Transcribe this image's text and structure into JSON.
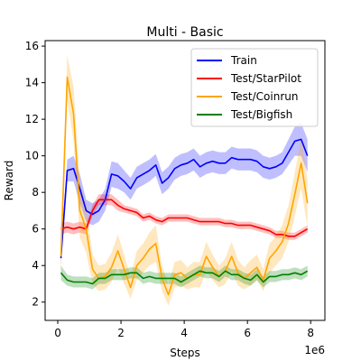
{
  "chart_data": {
    "type": "line",
    "title": "Multi - Basic",
    "xlabel": "Steps",
    "ylabel": "Reward",
    "x_offset_text": "1e6",
    "xlim": [
      -0.4,
      8.45
    ],
    "ylim": [
      1.0,
      16.3
    ],
    "xticks": [
      0,
      2,
      4,
      6,
      8
    ],
    "yticks": [
      2,
      4,
      6,
      8,
      10,
      12,
      14,
      16
    ],
    "legend": "top-right",
    "grid": false,
    "x": [
      0.1,
      0.3,
      0.5,
      0.7,
      0.9,
      1.1,
      1.3,
      1.5,
      1.7,
      1.9,
      2.1,
      2.3,
      2.5,
      2.7,
      2.9,
      3.1,
      3.3,
      3.5,
      3.7,
      3.9,
      4.1,
      4.3,
      4.5,
      4.7,
      4.9,
      5.1,
      5.3,
      5.5,
      5.7,
      5.9,
      6.1,
      6.3,
      6.5,
      6.7,
      6.9,
      7.1,
      7.3,
      7.5,
      7.7,
      7.9
    ],
    "series": [
      {
        "name": "Train",
        "color": "#0000ff",
        "values": [
          4.4,
          9.2,
          9.3,
          8.2,
          7.0,
          6.8,
          7.0,
          7.6,
          9.0,
          8.9,
          8.6,
          8.2,
          8.8,
          9.0,
          9.2,
          9.5,
          8.5,
          8.8,
          9.3,
          9.5,
          9.6,
          9.8,
          9.4,
          9.6,
          9.7,
          9.6,
          9.6,
          9.9,
          9.8,
          9.8,
          9.8,
          9.7,
          9.4,
          9.3,
          9.4,
          9.6,
          10.2,
          10.8,
          10.9,
          10.0
        ],
        "band": [
          0.4,
          0.6,
          0.7,
          0.8,
          0.6,
          0.6,
          0.6,
          0.6,
          0.7,
          0.7,
          0.6,
          0.6,
          0.6,
          0.6,
          0.6,
          0.6,
          0.6,
          0.6,
          0.6,
          0.6,
          0.6,
          0.6,
          0.6,
          0.6,
          0.6,
          0.6,
          0.6,
          0.6,
          0.6,
          0.6,
          0.6,
          0.6,
          0.6,
          0.6,
          0.6,
          0.6,
          0.7,
          0.8,
          0.9,
          0.9
        ]
      },
      {
        "name": "Test/StarPilot",
        "color": "#ff0000",
        "values": [
          6.0,
          6.1,
          6.0,
          6.1,
          6.0,
          7.0,
          7.6,
          7.6,
          7.6,
          7.3,
          7.1,
          7.0,
          6.9,
          6.6,
          6.7,
          6.5,
          6.4,
          6.6,
          6.6,
          6.6,
          6.6,
          6.5,
          6.4,
          6.4,
          6.4,
          6.4,
          6.3,
          6.3,
          6.2,
          6.2,
          6.2,
          6.1,
          6.0,
          5.9,
          5.7,
          5.7,
          5.6,
          5.6,
          5.8,
          6.0
        ],
        "band": [
          0.3,
          0.3,
          0.3,
          0.3,
          0.3,
          0.3,
          0.3,
          0.3,
          0.3,
          0.3,
          0.2,
          0.2,
          0.2,
          0.2,
          0.2,
          0.2,
          0.2,
          0.2,
          0.2,
          0.2,
          0.2,
          0.2,
          0.2,
          0.2,
          0.2,
          0.2,
          0.2,
          0.2,
          0.2,
          0.2,
          0.2,
          0.2,
          0.2,
          0.2,
          0.2,
          0.2,
          0.2,
          0.2,
          0.2,
          0.2
        ]
      },
      {
        "name": "Test/Coinrun",
        "color": "#ffa500",
        "values": [
          4.5,
          14.3,
          12.3,
          7.0,
          6.0,
          3.8,
          3.3,
          3.4,
          3.9,
          4.8,
          3.8,
          2.8,
          4.0,
          4.4,
          4.9,
          5.2,
          3.3,
          2.4,
          3.5,
          3.6,
          3.3,
          3.5,
          3.5,
          4.5,
          3.9,
          3.4,
          3.7,
          4.5,
          3.6,
          3.3,
          3.6,
          3.9,
          3.2,
          4.4,
          4.8,
          5.3,
          6.3,
          7.9,
          9.6,
          7.4
        ],
        "band": [
          1.0,
          1.2,
          1.5,
          1.5,
          1.3,
          0.8,
          0.7,
          0.7,
          0.8,
          0.9,
          0.8,
          0.6,
          0.8,
          0.8,
          0.9,
          1.0,
          0.7,
          0.6,
          0.7,
          0.7,
          0.6,
          0.7,
          0.7,
          0.8,
          0.7,
          0.6,
          0.7,
          0.8,
          0.7,
          0.6,
          0.7,
          0.7,
          0.6,
          0.8,
          0.8,
          0.9,
          1.0,
          1.2,
          1.4,
          1.3
        ]
      },
      {
        "name": "Test/Bigfish",
        "color": "#008000",
        "values": [
          3.6,
          3.2,
          3.1,
          3.1,
          3.1,
          3.0,
          3.3,
          3.3,
          3.5,
          3.5,
          3.5,
          3.6,
          3.6,
          3.3,
          3.4,
          3.3,
          3.3,
          3.3,
          3.3,
          3.1,
          3.3,
          3.5,
          3.7,
          3.6,
          3.6,
          3.4,
          3.7,
          3.5,
          3.5,
          3.3,
          3.2,
          3.5,
          3.1,
          3.4,
          3.4,
          3.5,
          3.5,
          3.6,
          3.5,
          3.7
        ],
        "band": [
          0.4,
          0.3,
          0.3,
          0.3,
          0.3,
          0.3,
          0.3,
          0.3,
          0.3,
          0.3,
          0.3,
          0.3,
          0.3,
          0.3,
          0.3,
          0.3,
          0.3,
          0.3,
          0.3,
          0.3,
          0.3,
          0.3,
          0.3,
          0.3,
          0.3,
          0.3,
          0.3,
          0.3,
          0.3,
          0.3,
          0.3,
          0.3,
          0.3,
          0.3,
          0.3,
          0.3,
          0.3,
          0.3,
          0.3,
          0.3
        ]
      }
    ]
  }
}
